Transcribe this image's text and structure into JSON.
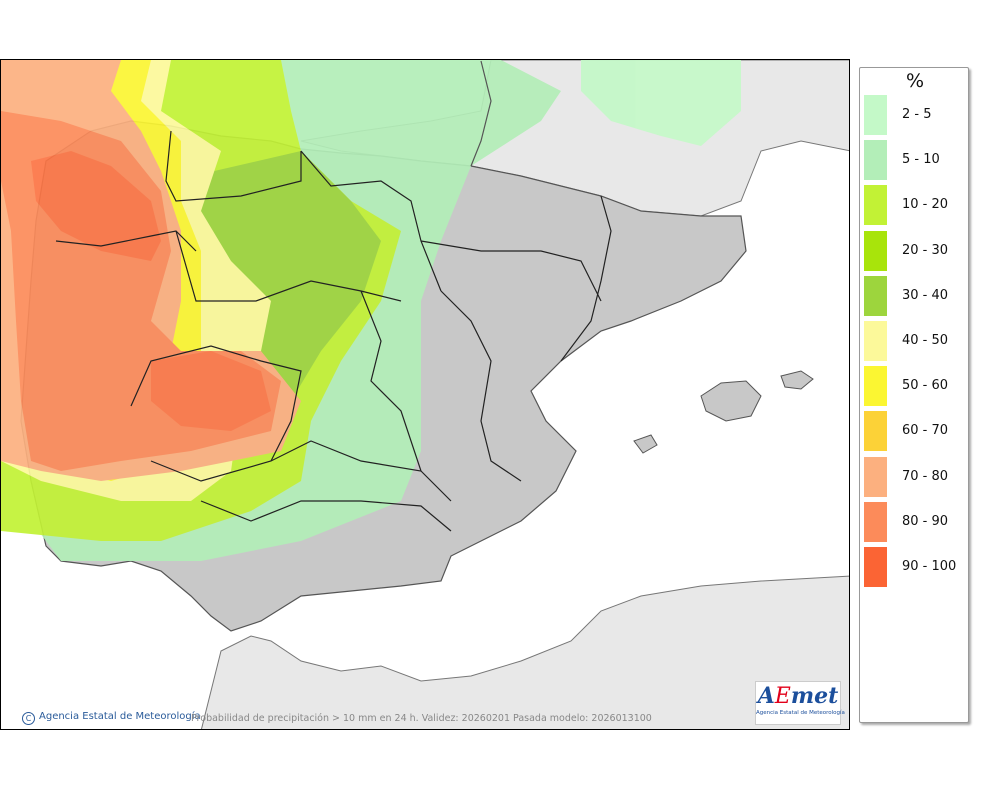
{
  "legend": {
    "title": "%",
    "items": [
      {
        "label": "2 - 5",
        "color": "#c4f9c8"
      },
      {
        "label": "5 - 10",
        "color": "#b3eeb8"
      },
      {
        "label": "10 - 20",
        "color": "#c2f235"
      },
      {
        "label": "20 - 30",
        "color": "#a8e40b"
      },
      {
        "label": "30 - 40",
        "color": "#9dd53d"
      },
      {
        "label": "40 - 50",
        "color": "#fcf99a"
      },
      {
        "label": "50 - 60",
        "color": "#fbf632"
      },
      {
        "label": "60 - 70",
        "color": "#fcd237"
      },
      {
        "label": "70 - 80",
        "color": "#fcb07f"
      },
      {
        "label": "80 - 90",
        "color": "#fc8b5a"
      },
      {
        "label": "90 - 100",
        "color": "#fb6434"
      }
    ]
  },
  "footer": {
    "copyright_symbol": "C",
    "agency": "Agencia Estatal de Meteorología",
    "caption": "Probabilidad de precipitación > 10 mm en 24 h. Validez: 20260201 Pasada modelo: 2026013100"
  },
  "logo": {
    "text_prefix": "A",
    "text_accent": "E",
    "text_suffix": "met",
    "subtitle": "Agencia Estatal de Meteorología"
  },
  "map": {
    "land_color": "#c8c8c8",
    "sea_color": "#ffffff",
    "foreign_color": "#e8e8e8"
  }
}
